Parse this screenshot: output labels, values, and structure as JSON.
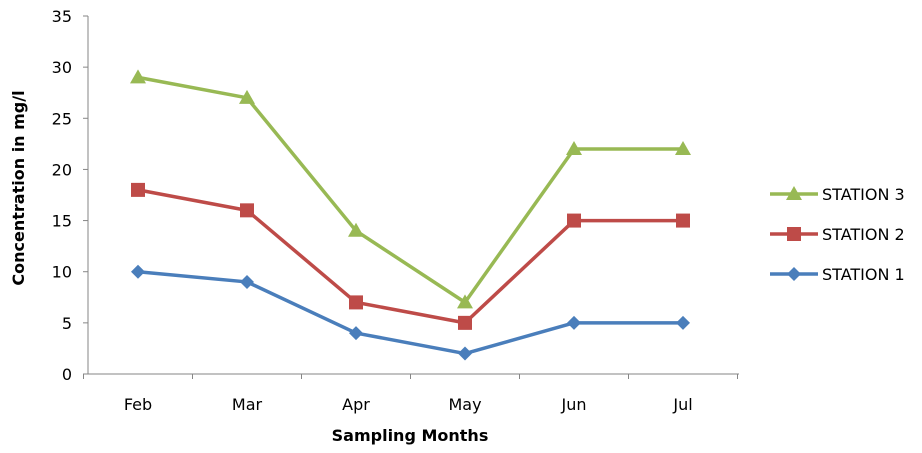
{
  "chart_data": {
    "type": "line",
    "title": "",
    "xlabel": "Sampling Months",
    "ylabel": "Concentration in mg/l",
    "categories": [
      "Feb",
      "Mar",
      "Apr",
      "May",
      "Jun",
      "Jul"
    ],
    "ylim": [
      0,
      35
    ],
    "yticks": [
      0,
      5,
      10,
      15,
      20,
      25,
      30,
      35
    ],
    "grid": false,
    "legend_position": "right",
    "series": [
      {
        "name": "STATION 1",
        "color": "#4A7EBB",
        "marker": "diamond",
        "values": [
          10,
          9,
          4,
          2,
          5,
          5
        ]
      },
      {
        "name": "STATION 2",
        "color": "#BE4B48",
        "marker": "square",
        "values": [
          18,
          16,
          7,
          5,
          15,
          15
        ]
      },
      {
        "name": "STATION 3",
        "color": "#98B954",
        "marker": "triangle",
        "values": [
          29,
          27,
          14,
          7,
          22,
          22
        ]
      }
    ],
    "legend_order": [
      "STATION 3",
      "STATION 2",
      "STATION 1"
    ]
  }
}
